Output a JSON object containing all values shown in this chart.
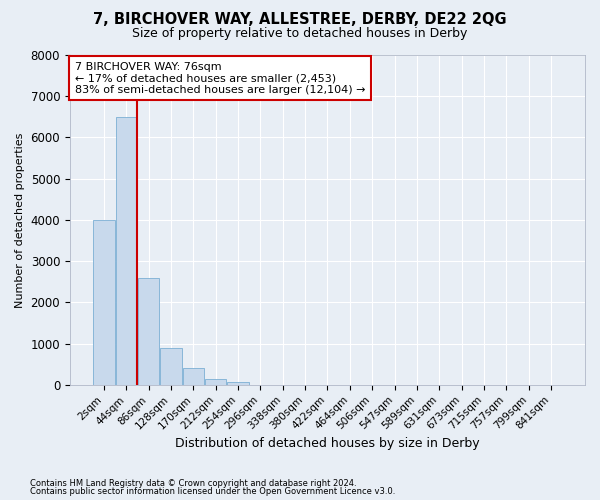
{
  "title": "7, BIRCHOVER WAY, ALLESTREE, DERBY, DE22 2QG",
  "subtitle": "Size of property relative to detached houses in Derby",
  "xlabel": "Distribution of detached houses by size in Derby",
  "ylabel": "Number of detached properties",
  "bar_labels": [
    "2sqm",
    "44sqm",
    "86sqm",
    "128sqm",
    "170sqm",
    "212sqm",
    "254sqm",
    "296sqm",
    "338sqm",
    "380sqm",
    "422sqm",
    "464sqm",
    "506sqm",
    "547sqm",
    "589sqm",
    "631sqm",
    "673sqm",
    "715sqm",
    "757sqm",
    "799sqm",
    "841sqm"
  ],
  "bar_values": [
    4000,
    6500,
    2600,
    900,
    400,
    150,
    60,
    0,
    0,
    0,
    0,
    0,
    0,
    0,
    0,
    0,
    0,
    0,
    0,
    0,
    0
  ],
  "bar_color": "#c8d9ec",
  "bar_edge_color": "#7bafd4",
  "vline_x": 1.5,
  "vline_color": "#cc0000",
  "ylim": [
    0,
    8000
  ],
  "yticks": [
    0,
    1000,
    2000,
    3000,
    4000,
    5000,
    6000,
    7000,
    8000
  ],
  "annotation_text": "7 BIRCHOVER WAY: 76sqm\n← 17% of detached houses are smaller (2,453)\n83% of semi-detached houses are larger (12,104) →",
  "annotation_box_color": "#ffffff",
  "annotation_box_edge": "#cc0000",
  "footer_line1": "Contains HM Land Registry data © Crown copyright and database right 2024.",
  "footer_line2": "Contains public sector information licensed under the Open Government Licence v3.0.",
  "background_color": "#e8eef5",
  "plot_bg_color": "#e8eef5",
  "title_fontsize": 10.5,
  "subtitle_fontsize": 9,
  "xlabel_fontsize": 9,
  "ylabel_fontsize": 8,
  "grid_color": "#ffffff",
  "tick_fontsize": 7.5,
  "annot_fontsize": 8
}
